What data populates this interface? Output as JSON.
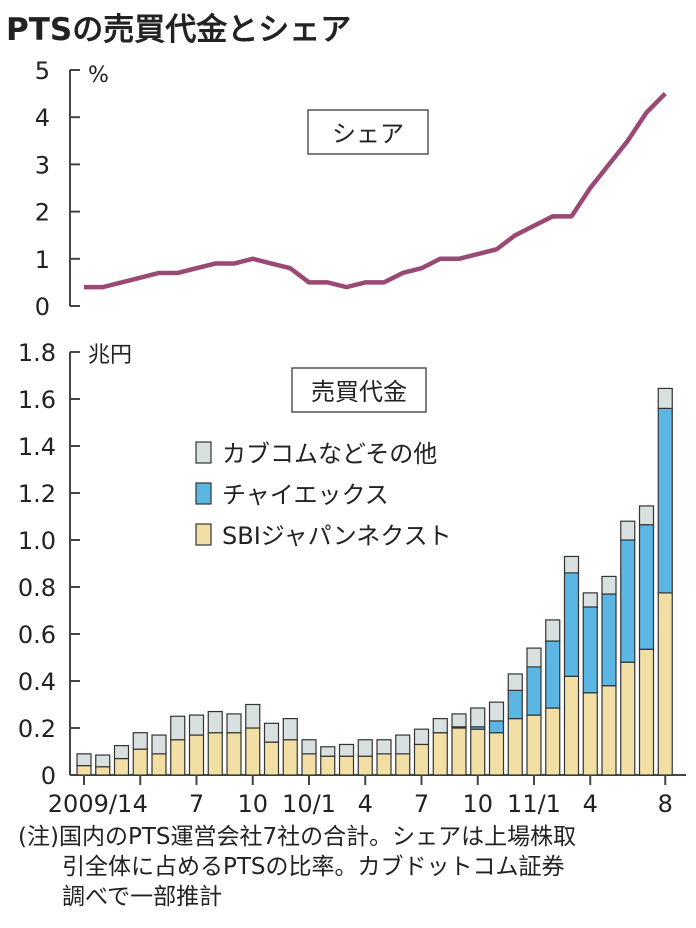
{
  "title": "PTSの売買代金とシェア",
  "note_lines": [
    "(注)国内のPTS運営会社7社の合計。シェアは上場株取",
    "引全体に占めるPTSの比率。カブドットコム証券",
    "調べで一部推計"
  ],
  "colors": {
    "sbi": "#f2dfa5",
    "chix": "#5bb6e4",
    "other": "#d8e1e0",
    "line": "#9a4874"
  },
  "chart_data": [
    {
      "type": "line",
      "title": "シェア",
      "ylabel": "%",
      "ylim": [
        0,
        5
      ],
      "yticks": [
        "0",
        "1",
        "2",
        "3",
        "4",
        "5"
      ],
      "values": [
        0.4,
        0.4,
        0.5,
        0.6,
        0.7,
        0.7,
        0.8,
        0.9,
        0.9,
        1.0,
        0.9,
        0.8,
        0.5,
        0.5,
        0.4,
        0.5,
        0.5,
        0.7,
        0.8,
        1.0,
        1.0,
        1.1,
        1.2,
        1.5,
        1.7,
        1.9,
        1.9,
        2.5,
        3.0,
        3.5,
        4.1,
        4.5
      ]
    },
    {
      "type": "bar",
      "stacked": true,
      "title": "売買代金",
      "ylabel": "兆円",
      "ylim": [
        0,
        1.8
      ],
      "yticks": [
        "0",
        "0.2",
        "0.4",
        "0.6",
        "0.8",
        "1.0",
        "1.2",
        "1.4",
        "1.6",
        "1.8"
      ],
      "xtick_labels": [
        {
          "index": 0,
          "label": "2009/1"
        },
        {
          "index": 3,
          "label": "4"
        },
        {
          "index": 6,
          "label": "7"
        },
        {
          "index": 9,
          "label": "10"
        },
        {
          "index": 12,
          "label": "10/1"
        },
        {
          "index": 15,
          "label": "4"
        },
        {
          "index": 18,
          "label": "7"
        },
        {
          "index": 21,
          "label": "10"
        },
        {
          "index": 24,
          "label": "11/1"
        },
        {
          "index": 27,
          "label": "4"
        },
        {
          "index": 31,
          "label": "8"
        }
      ],
      "legend": [
        "カブコムなどその他",
        "チャイエックス",
        "SBIジャパンネクスト"
      ],
      "series": [
        {
          "name": "SBIジャパンネクスト",
          "values": [
            0.04,
            0.035,
            0.07,
            0.11,
            0.09,
            0.15,
            0.17,
            0.18,
            0.18,
            0.2,
            0.14,
            0.15,
            0.09,
            0.08,
            0.08,
            0.08,
            0.09,
            0.09,
            0.13,
            0.18,
            0.2,
            0.195,
            0.18,
            0.24,
            0.255,
            0.285,
            0.42,
            0.35,
            0.38,
            0.48,
            0.535,
            0.775
          ]
        },
        {
          "name": "チャイエックス",
          "values": [
            0,
            0,
            0,
            0,
            0,
            0,
            0,
            0,
            0,
            0,
            0,
            0,
            0,
            0,
            0,
            0,
            0,
            0,
            0,
            0,
            0.005,
            0.01,
            0.05,
            0.12,
            0.205,
            0.285,
            0.44,
            0.365,
            0.39,
            0.52,
            0.53,
            0.785
          ]
        },
        {
          "name": "カブコムなどその他",
          "values": [
            0.05,
            0.05,
            0.055,
            0.07,
            0.08,
            0.1,
            0.085,
            0.09,
            0.08,
            0.1,
            0.08,
            0.09,
            0.06,
            0.04,
            0.05,
            0.07,
            0.06,
            0.08,
            0.065,
            0.06,
            0.055,
            0.08,
            0.08,
            0.07,
            0.08,
            0.09,
            0.07,
            0.06,
            0.075,
            0.08,
            0.08,
            0.085
          ]
        }
      ]
    }
  ]
}
